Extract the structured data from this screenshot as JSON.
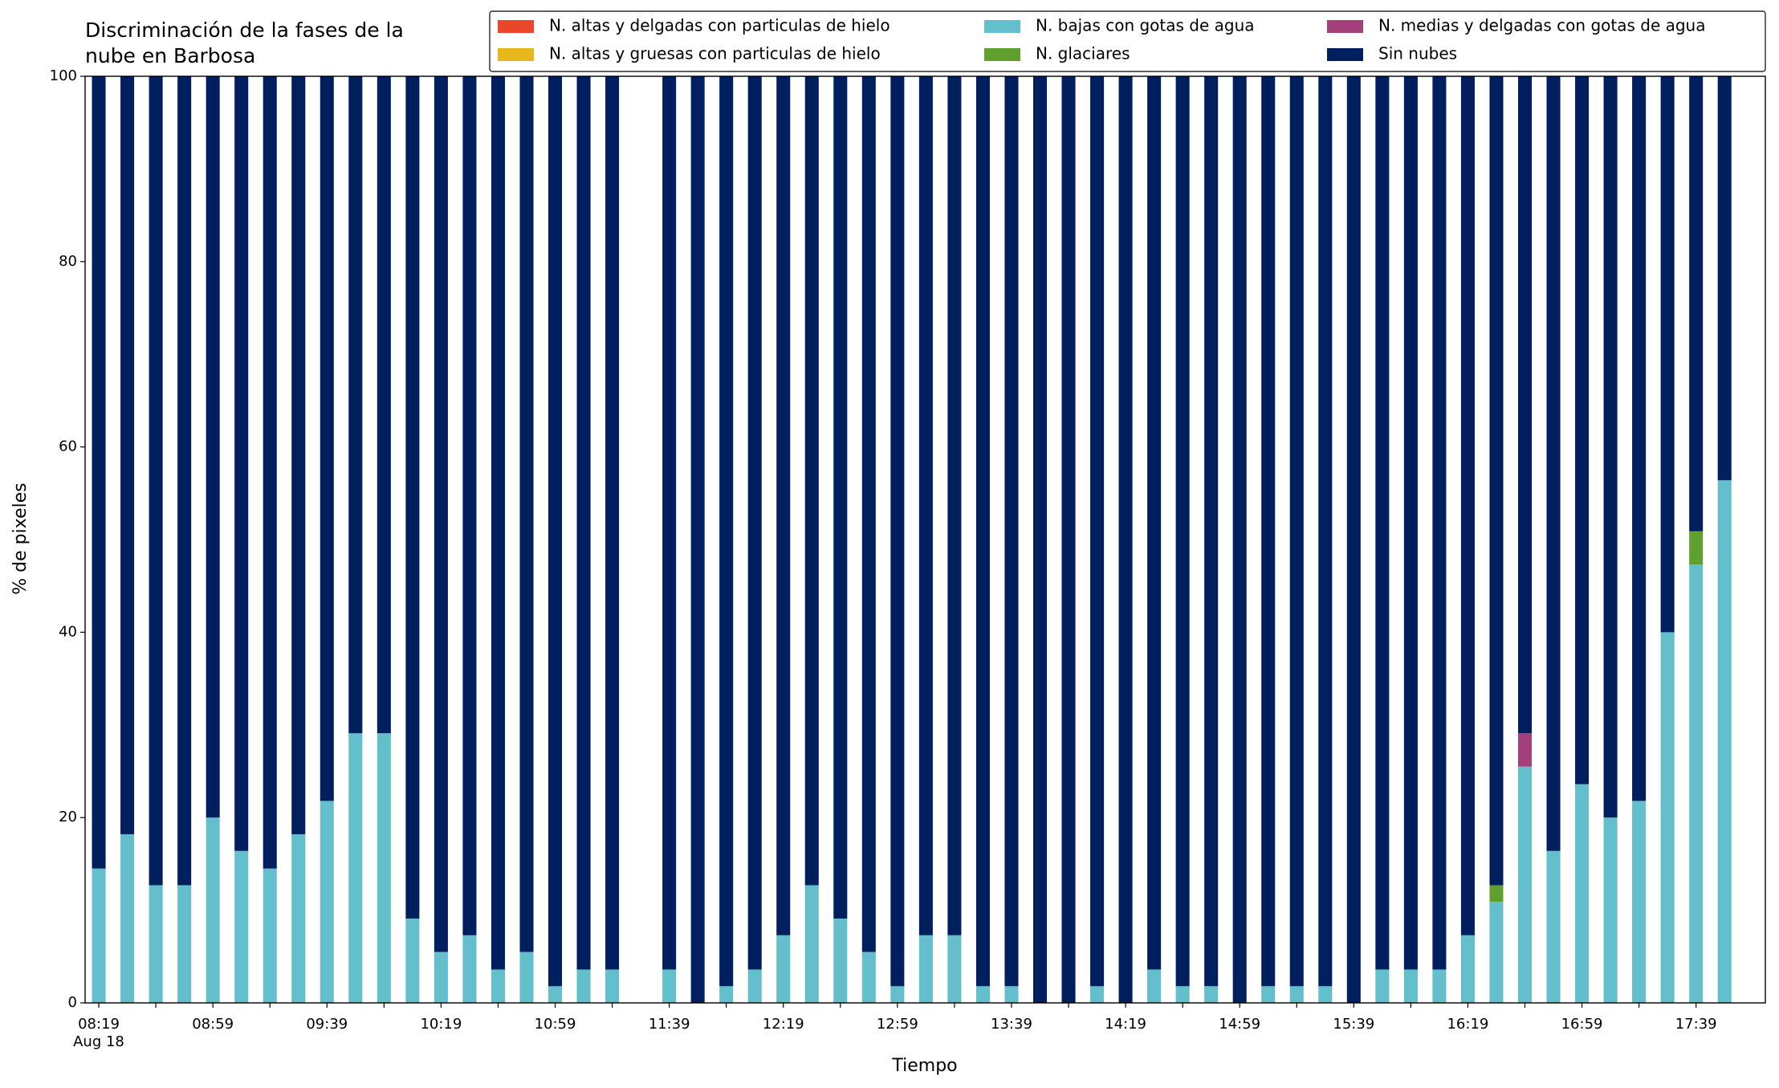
{
  "chart_data": {
    "type": "stacked_bar",
    "title": "Discriminación de la fases de la nube en Barbosa",
    "xlabel": "Tiempo",
    "ylabel": "% de pixeles",
    "date_label": "Aug 18",
    "categories": [
      "08:19",
      null,
      null,
      null,
      "08:59",
      null,
      null,
      null,
      "09:39",
      null,
      null,
      null,
      "10:19",
      null,
      null,
      null,
      "10:59",
      null,
      null,
      null,
      "11:39",
      null,
      null,
      null,
      "12:19",
      null,
      null,
      null,
      "12:59",
      null,
      null,
      null,
      "13:39",
      null,
      null,
      null,
      "14:19",
      null,
      null,
      null,
      "14:59",
      null,
      null,
      null,
      "15:39",
      null,
      null,
      null,
      "16:19",
      null,
      null,
      null,
      "16:59",
      null,
      null,
      null,
      "17:39",
      null
    ],
    "series": [
      {
        "name": "N. altas y delgadas con particulas de hielo",
        "color": "#e8472c",
        "values": [
          0,
          0,
          0,
          0,
          0,
          0,
          0,
          0,
          0,
          0,
          0,
          0,
          0,
          0,
          0,
          0,
          0,
          0,
          0,
          null,
          0,
          0,
          0,
          0,
          0,
          0,
          0,
          0,
          0,
          0,
          0,
          0,
          0,
          0,
          0,
          0,
          0,
          0,
          0,
          0,
          0,
          0,
          0,
          0,
          0,
          0,
          0,
          0,
          0,
          0,
          0,
          0,
          0,
          0,
          0,
          0,
          0,
          0
        ]
      },
      {
        "name": "N. altas y gruesas con particulas de hielo",
        "color": "#e6b81c",
        "values": [
          0,
          0,
          0,
          0,
          0,
          0,
          0,
          0,
          0,
          0,
          0,
          0,
          0,
          0,
          0,
          0,
          0,
          0,
          0,
          null,
          0,
          0,
          0,
          0,
          0,
          0,
          0,
          0,
          0,
          0,
          0,
          0,
          0,
          0,
          0,
          0,
          0,
          0,
          0,
          0,
          0,
          0,
          0,
          0,
          0,
          0,
          0,
          0,
          0,
          0,
          0,
          0,
          0,
          0,
          0,
          0,
          0,
          0
        ]
      },
      {
        "name": "N. bajas con gotas de agua",
        "color": "#62bfcb",
        "values": [
          14.5,
          18.2,
          12.7,
          12.7,
          20.0,
          16.4,
          14.5,
          18.2,
          21.8,
          29.1,
          29.1,
          9.1,
          5.5,
          7.3,
          3.6,
          5.5,
          1.8,
          3.6,
          3.6,
          null,
          3.6,
          0,
          1.8,
          3.6,
          7.3,
          12.7,
          9.1,
          5.5,
          1.8,
          7.3,
          7.3,
          1.8,
          1.8,
          0,
          0,
          1.8,
          0,
          3.6,
          1.8,
          1.8,
          0,
          1.8,
          1.8,
          1.8,
          0,
          3.6,
          3.6,
          3.6,
          7.3,
          10.9,
          25.5,
          16.4,
          23.6,
          20.0,
          21.8,
          40.0,
          47.3,
          56.4
        ]
      },
      {
        "name": "N. glaciares",
        "color": "#5fa02e",
        "values": [
          0,
          0,
          0,
          0,
          0,
          0,
          0,
          0,
          0,
          0,
          0,
          0,
          0,
          0,
          0,
          0,
          0,
          0,
          0,
          null,
          0,
          0,
          0,
          0,
          0,
          0,
          0,
          0,
          0,
          0,
          0,
          0,
          0,
          0,
          0,
          0,
          0,
          0,
          0,
          0,
          0,
          0,
          0,
          0,
          0,
          0,
          0,
          0,
          0,
          1.8,
          0,
          0,
          0,
          0,
          0,
          0,
          3.6,
          0
        ]
      },
      {
        "name": "N. medias y delgadas con gotas de agua",
        "color": "#a33f7a",
        "values": [
          0,
          0,
          0,
          0,
          0,
          0,
          0,
          0,
          0,
          0,
          0,
          0,
          0,
          0,
          0,
          0,
          0,
          0,
          0,
          null,
          0,
          0,
          0,
          0,
          0,
          0,
          0,
          0,
          0,
          0,
          0,
          0,
          0,
          0,
          0,
          0,
          0,
          0,
          0,
          0,
          0,
          0,
          0,
          0,
          0,
          0,
          0,
          0,
          0,
          0,
          3.6,
          0,
          0,
          0,
          0,
          0,
          0,
          0
        ]
      },
      {
        "name": "Sin nubes",
        "color": "#001f5f",
        "values": [
          85.5,
          81.8,
          87.3,
          87.3,
          80.0,
          83.6,
          85.5,
          81.8,
          78.2,
          70.9,
          70.9,
          90.9,
          94.5,
          92.7,
          96.4,
          94.5,
          98.2,
          96.4,
          96.4,
          null,
          96.4,
          100,
          98.2,
          96.4,
          92.7,
          87.3,
          90.9,
          94.5,
          98.2,
          92.7,
          92.7,
          98.2,
          98.2,
          100,
          100,
          98.2,
          100,
          96.4,
          98.2,
          98.2,
          100,
          98.2,
          98.2,
          98.2,
          100,
          96.4,
          96.4,
          96.4,
          92.7,
          87.3,
          70.9,
          83.6,
          76.4,
          80.0,
          78.2,
          60.0,
          49.1,
          43.6
        ]
      }
    ],
    "ylim": [
      0,
      100
    ],
    "yticks": [
      0,
      20,
      40,
      60,
      80,
      100
    ],
    "grid": false,
    "legend": "top right"
  }
}
